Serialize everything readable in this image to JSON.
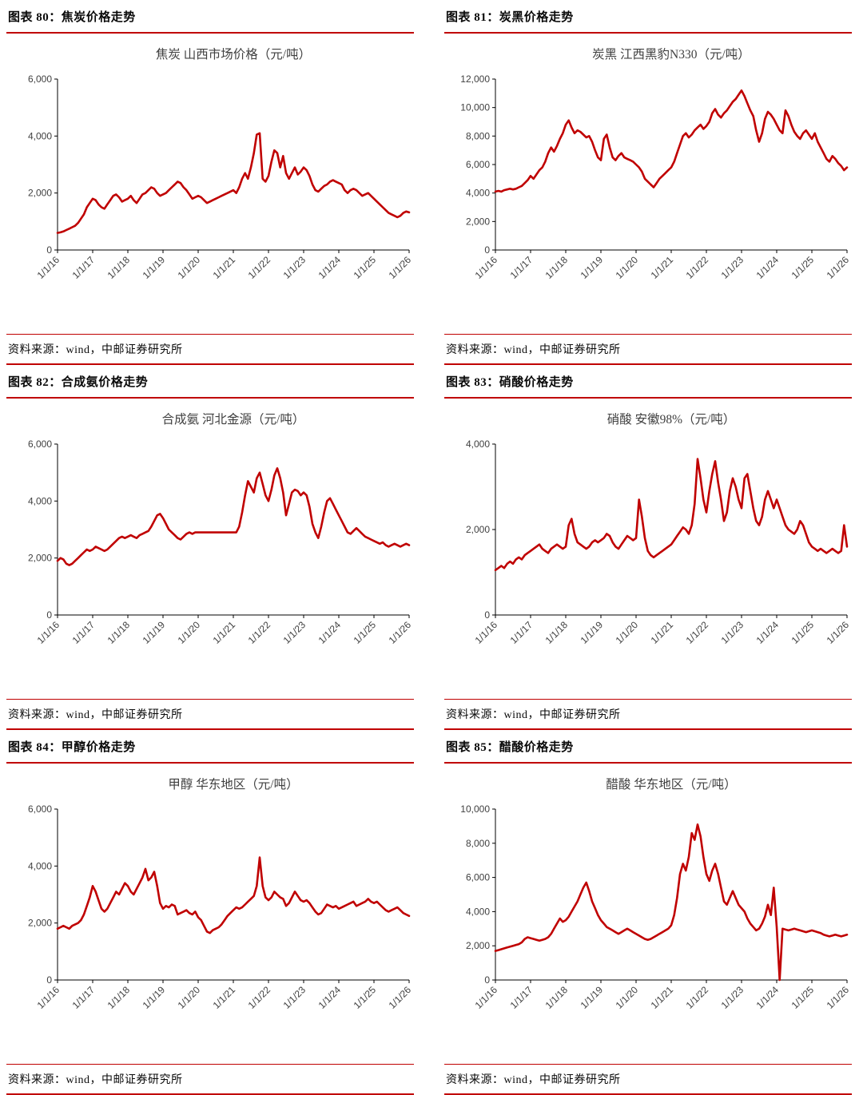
{
  "colors": {
    "accent": "#C00000",
    "axis": "#000000",
    "tick_text": "#404040"
  },
  "source_note": "资料来源：wind，中邮证券研究所",
  "panels": [
    {
      "header": "图表 80：焦炭价格走势"
    },
    {
      "header": "图表 81：炭黑价格走势"
    },
    {
      "header": "图表 82：合成氨价格走势"
    },
    {
      "header": "图表 83：硝酸价格走势"
    },
    {
      "header": "图表 84：甲醇价格走势"
    },
    {
      "header": "图表 85：醋酸价格走势"
    }
  ],
  "chart_data": [
    {
      "type": "line",
      "title": "焦炭 山西市场价格（元/吨）",
      "xlabel": "",
      "ylabel": "",
      "ylim": [
        0,
        6000
      ],
      "ytick_step": 2000,
      "grid": false,
      "legend": "none",
      "x_start": "2016-01",
      "x_freq": "monthly",
      "x_tick_labels": [
        "1/1/16",
        "1/1/17",
        "1/1/18",
        "1/1/19",
        "1/1/20",
        "1/1/21",
        "1/1/22",
        "1/1/23",
        "1/1/24",
        "1/1/25",
        "1/1/26"
      ],
      "series": [
        {
          "name": "焦炭 山西市场价格",
          "color": "#C00000",
          "values": [
            600,
            620,
            650,
            700,
            750,
            800,
            850,
            950,
            1100,
            1250,
            1500,
            1650,
            1800,
            1750,
            1600,
            1500,
            1450,
            1600,
            1750,
            1900,
            1950,
            1850,
            1700,
            1750,
            1800,
            1900,
            1750,
            1650,
            1800,
            1950,
            2000,
            2100,
            2200,
            2150,
            2000,
            1900,
            1950,
            2000,
            2100,
            2200,
            2300,
            2400,
            2350,
            2200,
            2100,
            1950,
            1800,
            1850,
            1900,
            1850,
            1750,
            1650,
            1700,
            1750,
            1800,
            1850,
            1900,
            1950,
            2000,
            2050,
            2100,
            2000,
            2200,
            2500,
            2700,
            2500,
            2900,
            3400,
            4050,
            4100,
            2500,
            2400,
            2600,
            3100,
            3500,
            3400,
            2900,
            3300,
            2700,
            2500,
            2700,
            2900,
            2650,
            2750,
            2900,
            2800,
            2600,
            2300,
            2100,
            2050,
            2150,
            2250,
            2300,
            2400,
            2450,
            2400,
            2350,
            2300,
            2100,
            2000,
            2100,
            2150,
            2100,
            2000,
            1900,
            1950,
            2000,
            1900,
            1800,
            1700,
            1600,
            1500,
            1400,
            1300,
            1250,
            1200,
            1150,
            1200,
            1300,
            1350,
            1320
          ]
        }
      ]
    },
    {
      "type": "line",
      "title": "炭黑 江西黑豹N330（元/吨）",
      "xlabel": "",
      "ylabel": "",
      "ylim": [
        0,
        12000
      ],
      "ytick_step": 2000,
      "grid": false,
      "legend": "none",
      "x_start": "2016-01",
      "x_freq": "monthly",
      "x_tick_labels": [
        "1/1/16",
        "1/1/17",
        "1/1/18",
        "1/1/19",
        "1/1/20",
        "1/1/21",
        "1/1/22",
        "1/1/23",
        "1/1/24",
        "1/1/25",
        "1/1/26"
      ],
      "series": [
        {
          "name": "炭黑 江西黑豹N330",
          "color": "#C00000",
          "values": [
            4100,
            4150,
            4100,
            4200,
            4250,
            4300,
            4250,
            4300,
            4400,
            4500,
            4700,
            4900,
            5200,
            5000,
            5300,
            5600,
            5800,
            6200,
            6800,
            7200,
            6900,
            7300,
            7800,
            8200,
            8800,
            9100,
            8600,
            8200,
            8400,
            8300,
            8100,
            7900,
            8000,
            7600,
            7000,
            6500,
            6300,
            7800,
            8100,
            7200,
            6500,
            6300,
            6600,
            6800,
            6500,
            6400,
            6300,
            6200,
            6000,
            5800,
            5500,
            5000,
            4800,
            4600,
            4400,
            4700,
            5000,
            5200,
            5400,
            5600,
            5800,
            6200,
            6800,
            7400,
            8000,
            8200,
            7900,
            8100,
            8400,
            8600,
            8800,
            8500,
            8700,
            9000,
            9600,
            9900,
            9500,
            9300,
            9600,
            9800,
            10100,
            10400,
            10600,
            10900,
            11200,
            10800,
            10300,
            9800,
            9400,
            8400,
            7600,
            8200,
            9200,
            9700,
            9500,
            9200,
            8800,
            8400,
            8200,
            9800,
            9400,
            8800,
            8300,
            8000,
            7800,
            8200,
            8400,
            8100,
            7800,
            8200,
            7600,
            7200,
            6800,
            6400,
            6200,
            6600,
            6400,
            6100,
            5900,
            5600,
            5800
          ]
        }
      ]
    },
    {
      "type": "line",
      "title": "合成氨 河北金源（元/吨）",
      "xlabel": "",
      "ylabel": "",
      "ylim": [
        0,
        6000
      ],
      "ytick_step": 2000,
      "grid": false,
      "legend": "none",
      "x_start": "2016-01",
      "x_freq": "monthly",
      "x_tick_labels": [
        "1/1/16",
        "1/1/17",
        "1/1/18",
        "1/1/19",
        "1/1/20",
        "1/1/21",
        "1/1/22",
        "1/1/23",
        "1/1/24",
        "1/1/25",
        "1/1/26"
      ],
      "series": [
        {
          "name": "合成氨 河北金源",
          "color": "#C00000",
          "values": [
            1900,
            2000,
            1950,
            1800,
            1750,
            1800,
            1900,
            2000,
            2100,
            2200,
            2300,
            2250,
            2300,
            2400,
            2350,
            2300,
            2250,
            2300,
            2400,
            2500,
            2600,
            2700,
            2750,
            2700,
            2750,
            2800,
            2750,
            2700,
            2800,
            2850,
            2900,
            2950,
            3100,
            3300,
            3500,
            3550,
            3400,
            3200,
            3000,
            2900,
            2800,
            2700,
            2650,
            2750,
            2850,
            2900,
            2850,
            2900,
            2900,
            2900,
            2900,
            2900,
            2900,
            2900,
            2900,
            2900,
            2900,
            2900,
            2900,
            2900,
            2900,
            2900,
            3100,
            3600,
            4200,
            4700,
            4500,
            4300,
            4800,
            5000,
            4600,
            4200,
            4000,
            4400,
            4900,
            5150,
            4800,
            4300,
            3500,
            3900,
            4300,
            4400,
            4350,
            4200,
            4300,
            4200,
            3800,
            3200,
            2900,
            2700,
            3100,
            3600,
            4000,
            4100,
            3900,
            3700,
            3500,
            3300,
            3100,
            2900,
            2850,
            2950,
            3050,
            2950,
            2850,
            2750,
            2700,
            2650,
            2600,
            2550,
            2500,
            2550,
            2450,
            2400,
            2450,
            2500,
            2450,
            2400,
            2450,
            2500,
            2450
          ]
        }
      ]
    },
    {
      "type": "line",
      "title": "硝酸 安徽98%（元/吨）",
      "xlabel": "",
      "ylabel": "",
      "ylim": [
        0,
        4000
      ],
      "ytick_step": 2000,
      "grid": false,
      "legend": "none",
      "x_start": "2016-01",
      "x_freq": "monthly",
      "x_tick_labels": [
        "1/1/16",
        "1/1/17",
        "1/1/18",
        "1/1/19",
        "1/1/20",
        "1/1/21",
        "1/1/22",
        "1/1/23",
        "1/1/24",
        "1/1/25",
        "1/1/26"
      ],
      "series": [
        {
          "name": "硝酸 安徽98%",
          "color": "#C00000",
          "values": [
            1050,
            1100,
            1150,
            1100,
            1200,
            1250,
            1200,
            1300,
            1350,
            1300,
            1400,
            1450,
            1500,
            1550,
            1600,
            1650,
            1550,
            1500,
            1450,
            1550,
            1600,
            1650,
            1600,
            1550,
            1600,
            2100,
            2250,
            1900,
            1700,
            1650,
            1600,
            1550,
            1600,
            1700,
            1750,
            1700,
            1750,
            1800,
            1900,
            1850,
            1700,
            1600,
            1550,
            1650,
            1750,
            1850,
            1800,
            1750,
            1800,
            2700,
            2300,
            1800,
            1500,
            1400,
            1350,
            1400,
            1450,
            1500,
            1550,
            1600,
            1650,
            1750,
            1850,
            1950,
            2050,
            2000,
            1900,
            2100,
            2600,
            3650,
            3200,
            2700,
            2400,
            2900,
            3300,
            3600,
            3100,
            2700,
            2200,
            2400,
            2900,
            3200,
            3000,
            2700,
            2500,
            3200,
            3300,
            2900,
            2500,
            2200,
            2100,
            2300,
            2700,
            2900,
            2700,
            2500,
            2700,
            2500,
            2300,
            2100,
            2000,
            1950,
            1900,
            2000,
            2200,
            2100,
            1900,
            1700,
            1600,
            1550,
            1500,
            1550,
            1500,
            1450,
            1500,
            1550,
            1500,
            1450,
            1500,
            2100,
            1600
          ]
        }
      ]
    },
    {
      "type": "line",
      "title": "甲醇 华东地区（元/吨）",
      "xlabel": "",
      "ylabel": "",
      "ylim": [
        0,
        6000
      ],
      "ytick_step": 2000,
      "grid": false,
      "legend": "none",
      "x_start": "2016-01",
      "x_freq": "monthly",
      "x_tick_labels": [
        "1/1/16",
        "1/1/17",
        "1/1/18",
        "1/1/19",
        "1/1/20",
        "1/1/21",
        "1/1/22",
        "1/1/23",
        "1/1/24",
        "1/1/25",
        "1/1/26"
      ],
      "series": [
        {
          "name": "甲醇 华东地区",
          "color": "#C00000",
          "values": [
            1800,
            1850,
            1900,
            1850,
            1800,
            1900,
            1950,
            2000,
            2100,
            2300,
            2600,
            2900,
            3300,
            3100,
            2800,
            2500,
            2400,
            2500,
            2700,
            2900,
            3100,
            3000,
            3200,
            3400,
            3300,
            3100,
            3000,
            3200,
            3400,
            3600,
            3900,
            3500,
            3600,
            3800,
            3300,
            2700,
            2500,
            2600,
            2550,
            2650,
            2600,
            2300,
            2350,
            2400,
            2450,
            2350,
            2300,
            2400,
            2200,
            2100,
            1900,
            1700,
            1650,
            1750,
            1800,
            1850,
            1950,
            2100,
            2250,
            2350,
            2450,
            2550,
            2500,
            2550,
            2650,
            2750,
            2850,
            2950,
            3300,
            4300,
            3300,
            2900,
            2800,
            2900,
            3100,
            3000,
            2900,
            2850,
            2600,
            2700,
            2900,
            3100,
            2950,
            2800,
            2750,
            2800,
            2700,
            2550,
            2400,
            2300,
            2350,
            2500,
            2650,
            2600,
            2550,
            2600,
            2500,
            2550,
            2600,
            2650,
            2700,
            2750,
            2600,
            2650,
            2700,
            2750,
            2850,
            2750,
            2700,
            2750,
            2650,
            2550,
            2450,
            2400,
            2450,
            2500,
            2550,
            2450,
            2350,
            2300,
            2250
          ]
        }
      ]
    },
    {
      "type": "line",
      "title": "醋酸 华东地区（元/吨）",
      "xlabel": "",
      "ylabel": "",
      "ylim": [
        0,
        10000
      ],
      "ytick_step": 2000,
      "grid": false,
      "legend": "none",
      "x_start": "2016-01",
      "x_freq": "monthly",
      "x_tick_labels": [
        "1/1/16",
        "1/1/17",
        "1/1/18",
        "1/1/19",
        "1/1/20",
        "1/1/21",
        "1/1/22",
        "1/1/23",
        "1/1/24",
        "1/1/25",
        "1/1/26"
      ],
      "series": [
        {
          "name": "醋酸 华东地区",
          "color": "#C00000",
          "values": [
            1700,
            1750,
            1800,
            1850,
            1900,
            1950,
            2000,
            2050,
            2100,
            2200,
            2400,
            2500,
            2450,
            2400,
            2350,
            2300,
            2350,
            2400,
            2500,
            2700,
            3000,
            3300,
            3600,
            3400,
            3500,
            3700,
            4000,
            4300,
            4600,
            5000,
            5400,
            5700,
            5200,
            4600,
            4200,
            3800,
            3500,
            3300,
            3100,
            3000,
            2900,
            2800,
            2700,
            2800,
            2900,
            3000,
            2900,
            2800,
            2700,
            2600,
            2500,
            2400,
            2350,
            2400,
            2500,
            2600,
            2700,
            2800,
            2900,
            3000,
            3200,
            3800,
            4800,
            6200,
            6800,
            6400,
            7200,
            8600,
            8200,
            9100,
            8400,
            7200,
            6200,
            5800,
            6400,
            6800,
            6200,
            5400,
            4600,
            4400,
            4800,
            5200,
            4800,
            4400,
            4200,
            4000,
            3600,
            3300,
            3100,
            2900,
            3000,
            3300,
            3700,
            4400,
            3800,
            5400,
            3100,
            0,
            3000,
            2950,
            2900,
            2950,
            3000,
            2950,
            2900,
            2850,
            2800,
            2850,
            2900,
            2850,
            2800,
            2750,
            2650,
            2600,
            2550,
            2600,
            2650,
            2600,
            2550,
            2600,
            2650
          ]
        }
      ]
    }
  ]
}
